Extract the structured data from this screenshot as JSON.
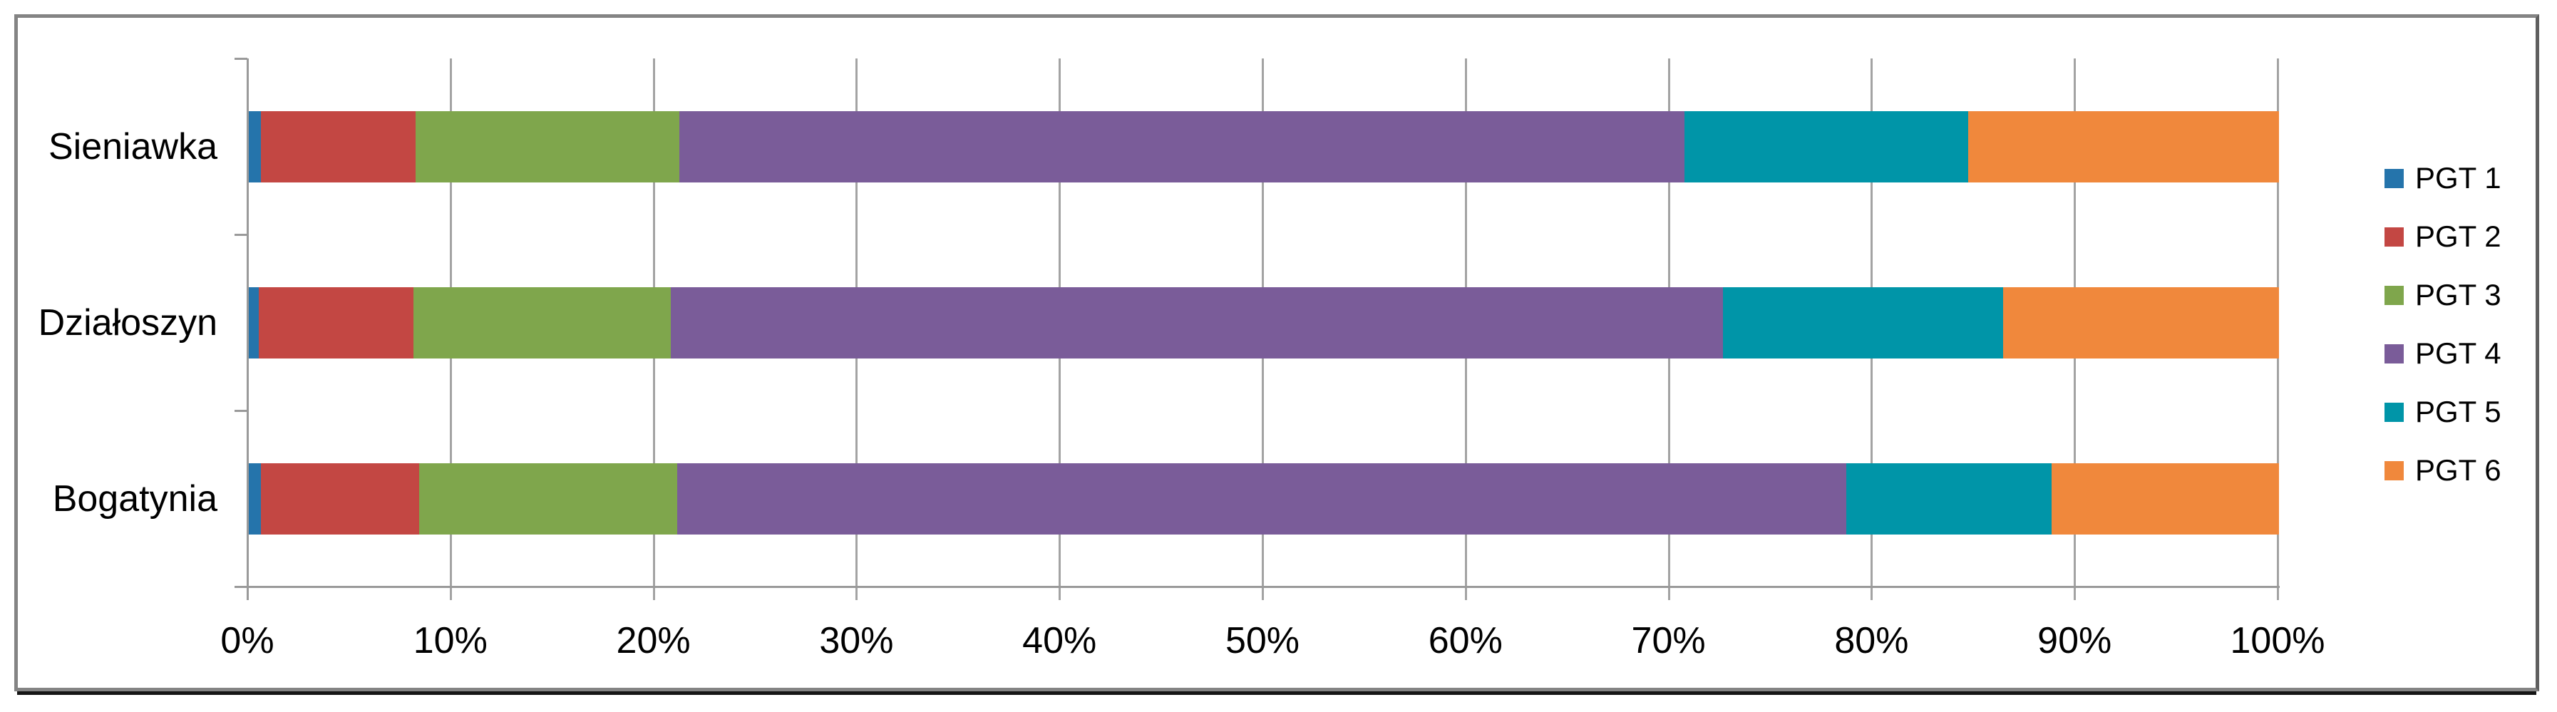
{
  "chart_data": {
    "type": "bar",
    "orientation": "horizontal",
    "stacked": true,
    "title": "",
    "xlabel": "",
    "ylabel": "",
    "categories": [
      "Sieniawka",
      "Działoszyn",
      "Bogatynia"
    ],
    "series": [
      {
        "name": "PGT 1",
        "color": "#2574ab",
        "values": [
          0.6,
          0.5,
          0.6
        ]
      },
      {
        "name": "PGT 2",
        "color": "#c34743",
        "values": [
          7.6,
          7.6,
          7.8
        ]
      },
      {
        "name": "PGT 3",
        "color": "#7fa64c",
        "values": [
          13.0,
          12.7,
          12.7
        ]
      },
      {
        "name": "PGT 4",
        "color": "#7a5c99",
        "values": [
          49.5,
          51.8,
          57.6
        ]
      },
      {
        "name": "PGT 5",
        "color": "#0095a8",
        "values": [
          14.0,
          13.8,
          10.1
        ]
      },
      {
        "name": "PGT 6",
        "color": "#f0883c",
        "values": [
          15.3,
          13.6,
          11.2
        ]
      }
    ],
    "x_tick_labels": [
      "0%",
      "10%",
      "20%",
      "30%",
      "40%",
      "50%",
      "60%",
      "70%",
      "80%",
      "90%",
      "100%"
    ],
    "xlim": [
      0,
      100
    ],
    "grid": true,
    "grid_color": "#a3a3a3",
    "axis_color": "#9a9a9a",
    "legend_position": "right"
  }
}
